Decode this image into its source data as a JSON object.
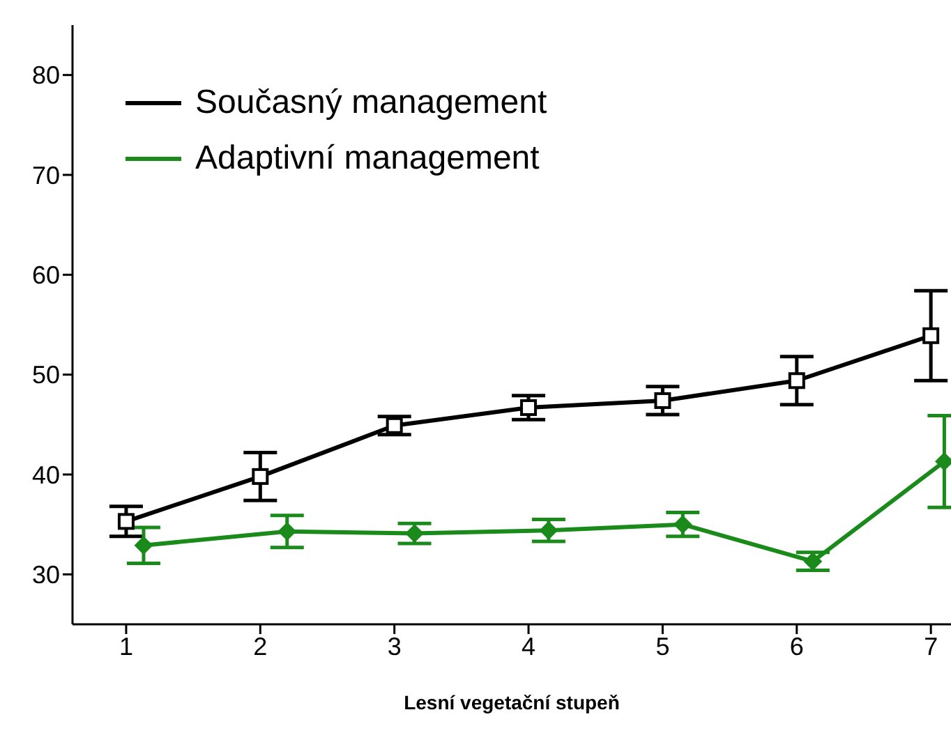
{
  "chart_data": {
    "type": "line",
    "xlabel": "Lesní vegetační stupeň",
    "xlim": [
      0.6,
      7.15
    ],
    "xticks": [
      1,
      2,
      3,
      4,
      5,
      6,
      7
    ],
    "ylim": [
      25,
      85
    ],
    "yticks": [
      30,
      40,
      50,
      60,
      70,
      80
    ],
    "grid": false,
    "legend": "top left",
    "line_style": "solid",
    "series": [
      {
        "name": "Současný management",
        "color": "#000000",
        "marker": "square",
        "x": [
          1,
          2,
          3,
          4,
          5,
          6,
          7
        ],
        "values": [
          35.3,
          39.8,
          44.9,
          46.7,
          47.4,
          49.4,
          53.9
        ],
        "errors": [
          1.5,
          2.4,
          0.9,
          1.2,
          1.4,
          2.4,
          4.5
        ]
      },
      {
        "name": "Adaptivní management",
        "color": "#1a8a1a",
        "marker": "diamond",
        "x": [
          1.13,
          2.2,
          3.15,
          4.15,
          5.15,
          6.12,
          7.1
        ],
        "values": [
          32.9,
          34.3,
          34.1,
          34.4,
          35.0,
          31.3,
          41.3
        ],
        "errors": [
          1.8,
          1.6,
          1.0,
          1.1,
          1.2,
          0.9,
          4.6
        ]
      }
    ]
  }
}
